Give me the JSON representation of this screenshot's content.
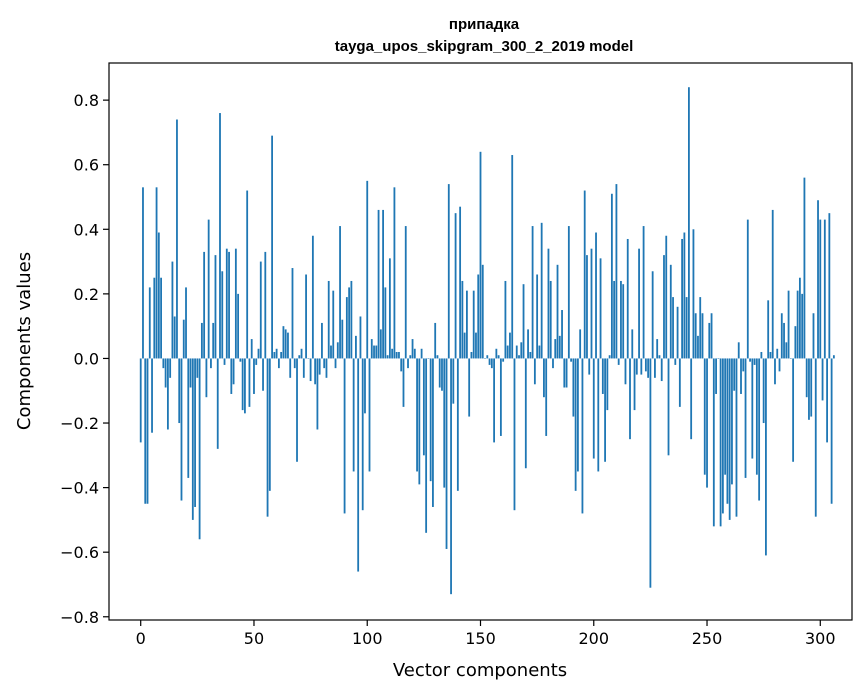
{
  "chart_data": {
    "type": "bar",
    "title_lines": [
      "припадка",
      "tayga_upos_skipgram_300_2_2019 model"
    ],
    "xlabel": "Vector components",
    "ylabel": "Components values",
    "xlim": [
      -14,
      314
    ],
    "ylim": [
      -0.81,
      0.915
    ],
    "x_ticks": [
      0,
      50,
      100,
      150,
      200,
      250,
      300
    ],
    "y_ticks": [
      -0.8,
      -0.6,
      -0.4,
      -0.2,
      0.0,
      0.2,
      0.4,
      0.6,
      0.8
    ],
    "y_tick_labels": [
      "−0.8",
      "−0.6",
      "−0.4",
      "−0.2",
      "0.0",
      "0.2",
      "0.4",
      "0.6",
      "0.8"
    ],
    "grid": false,
    "bar_color": "#1f77b4",
    "values": [
      -0.26,
      0.53,
      -0.45,
      -0.45,
      0.22,
      -0.23,
      0.25,
      0.53,
      0.39,
      0.25,
      -0.03,
      -0.09,
      -0.22,
      -0.06,
      0.3,
      0.13,
      0.74,
      -0.2,
      -0.44,
      0.12,
      0.22,
      -0.37,
      -0.09,
      -0.5,
      -0.46,
      -0.06,
      -0.56,
      0.11,
      0.33,
      -0.12,
      0.43,
      -0.03,
      0.11,
      0.32,
      -0.28,
      0.76,
      0.27,
      -0.02,
      0.34,
      0.33,
      -0.11,
      -0.08,
      0.34,
      0.2,
      -0.01,
      -0.16,
      -0.17,
      0.52,
      -0.15,
      0.06,
      -0.11,
      -0.02,
      0.03,
      0.3,
      -0.1,
      0.33,
      -0.49,
      -0.41,
      0.69,
      0.02,
      0.03,
      -0.03,
      0.02,
      0.1,
      0.09,
      0.08,
      -0.06,
      0.28,
      -0.03,
      -0.32,
      0.01,
      0.03,
      -0.06,
      0.26,
      0.0,
      -0.07,
      0.38,
      -0.08,
      -0.22,
      -0.05,
      0.11,
      -0.03,
      -0.06,
      0.24,
      0.04,
      0.21,
      -0.03,
      0.05,
      0.41,
      0.12,
      -0.48,
      0.19,
      0.22,
      0.24,
      -0.35,
      0.07,
      -0.66,
      0.13,
      -0.47,
      -0.17,
      0.55,
      -0.35,
      0.06,
      0.04,
      0.04,
      0.46,
      0.09,
      0.46,
      0.22,
      0.01,
      0.31,
      0.03,
      0.53,
      0.02,
      0.02,
      -0.04,
      -0.15,
      0.41,
      -0.03,
      0.01,
      0.06,
      0.03,
      -0.35,
      -0.39,
      0.03,
      -0.3,
      -0.54,
      0.0,
      -0.38,
      -0.46,
      0.11,
      0.01,
      -0.09,
      -0.1,
      -0.4,
      -0.59,
      0.54,
      -0.73,
      -0.14,
      0.45,
      -0.41,
      0.47,
      0.24,
      0.08,
      0.21,
      -0.18,
      0.02,
      0.21,
      0.08,
      0.26,
      0.64,
      0.29,
      0.0,
      0.01,
      -0.02,
      -0.03,
      -0.26,
      0.03,
      0.01,
      -0.24,
      -0.01,
      0.24,
      0.04,
      0.08,
      0.63,
      -0.47,
      0.04,
      0.01,
      0.05,
      0.23,
      -0.34,
      0.09,
      0.02,
      0.41,
      -0.08,
      0.26,
      0.04,
      0.42,
      -0.12,
      -0.24,
      0.34,
      0.24,
      -0.03,
      0.06,
      0.29,
      0.07,
      0.15,
      -0.09,
      -0.09,
      0.41,
      -0.01,
      -0.18,
      -0.41,
      -0.35,
      0.09,
      -0.48,
      0.52,
      0.32,
      -0.05,
      0.34,
      -0.31,
      0.39,
      -0.35,
      0.31,
      -0.11,
      -0.32,
      -0.16,
      0.01,
      0.51,
      0.24,
      0.54,
      -0.02,
      0.24,
      0.23,
      -0.08,
      0.37,
      -0.25,
      0.09,
      -0.16,
      -0.05,
      0.34,
      -0.05,
      0.41,
      -0.04,
      -0.06,
      -0.71,
      0.27,
      -0.06,
      0.06,
      0.01,
      -0.07,
      0.32,
      0.38,
      -0.3,
      0.29,
      0.19,
      -0.02,
      0.16,
      -0.15,
      0.37,
      0.39,
      0.19,
      0.84,
      -0.25,
      0.4,
      0.14,
      0.07,
      0.19,
      0.14,
      -0.36,
      -0.4,
      0.11,
      0.14,
      -0.52,
      -0.11,
      0.0,
      -0.52,
      -0.48,
      -0.36,
      -0.45,
      -0.5,
      -0.39,
      -0.1,
      -0.49,
      0.05,
      -0.11,
      -0.04,
      -0.37,
      0.43,
      -0.01,
      -0.31,
      -0.02,
      -0.36,
      -0.44,
      0.02,
      -0.2,
      -0.61,
      0.18,
      0.02,
      0.46,
      -0.08,
      0.03,
      -0.04,
      0.14,
      0.11,
      0.05,
      0.21,
      0.0,
      -0.32,
      0.1,
      0.21,
      0.25,
      0.2,
      0.56,
      -0.12,
      -0.19,
      -0.18,
      0.14,
      -0.49,
      0.49,
      0.43,
      -0.13,
      0.43,
      -0.26,
      0.45,
      -0.45,
      0.01
    ]
  }
}
